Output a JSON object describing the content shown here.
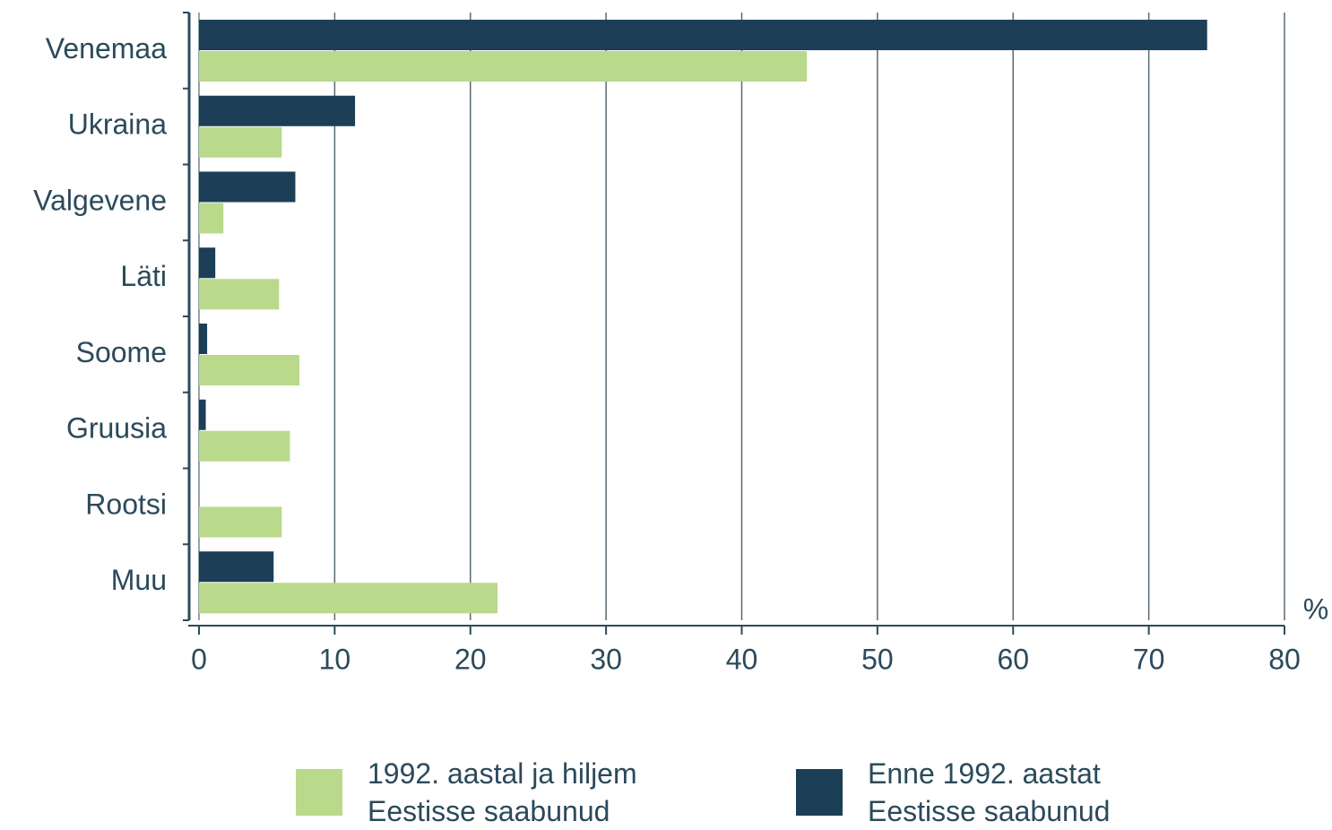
{
  "chart_data": {
    "type": "hbar",
    "categories": [
      "Venemaa",
      "Ukraina",
      "Valgevene",
      "Läti",
      "Soome",
      "Gruusia",
      "Rootsi",
      "Muu"
    ],
    "series": [
      {
        "name": "1992. aastal ja hiljem Eestisse saabunud",
        "color": "#b9d98b",
        "values": [
          44.8,
          6.1,
          1.8,
          5.9,
          7.4,
          6.7,
          6.1,
          22.0
        ]
      },
      {
        "name": "Enne 1992. aastat Eestisse saabunud",
        "color": "#1c3f57",
        "values": [
          74.3,
          11.5,
          7.1,
          1.2,
          0.6,
          0.5,
          0,
          5.5
        ]
      }
    ],
    "xlabel": "%",
    "xlim": [
      0,
      80
    ],
    "xticks": [
      0,
      10,
      20,
      30,
      40,
      50,
      60,
      70,
      80
    ],
    "grid": true,
    "legend": "bottom"
  }
}
